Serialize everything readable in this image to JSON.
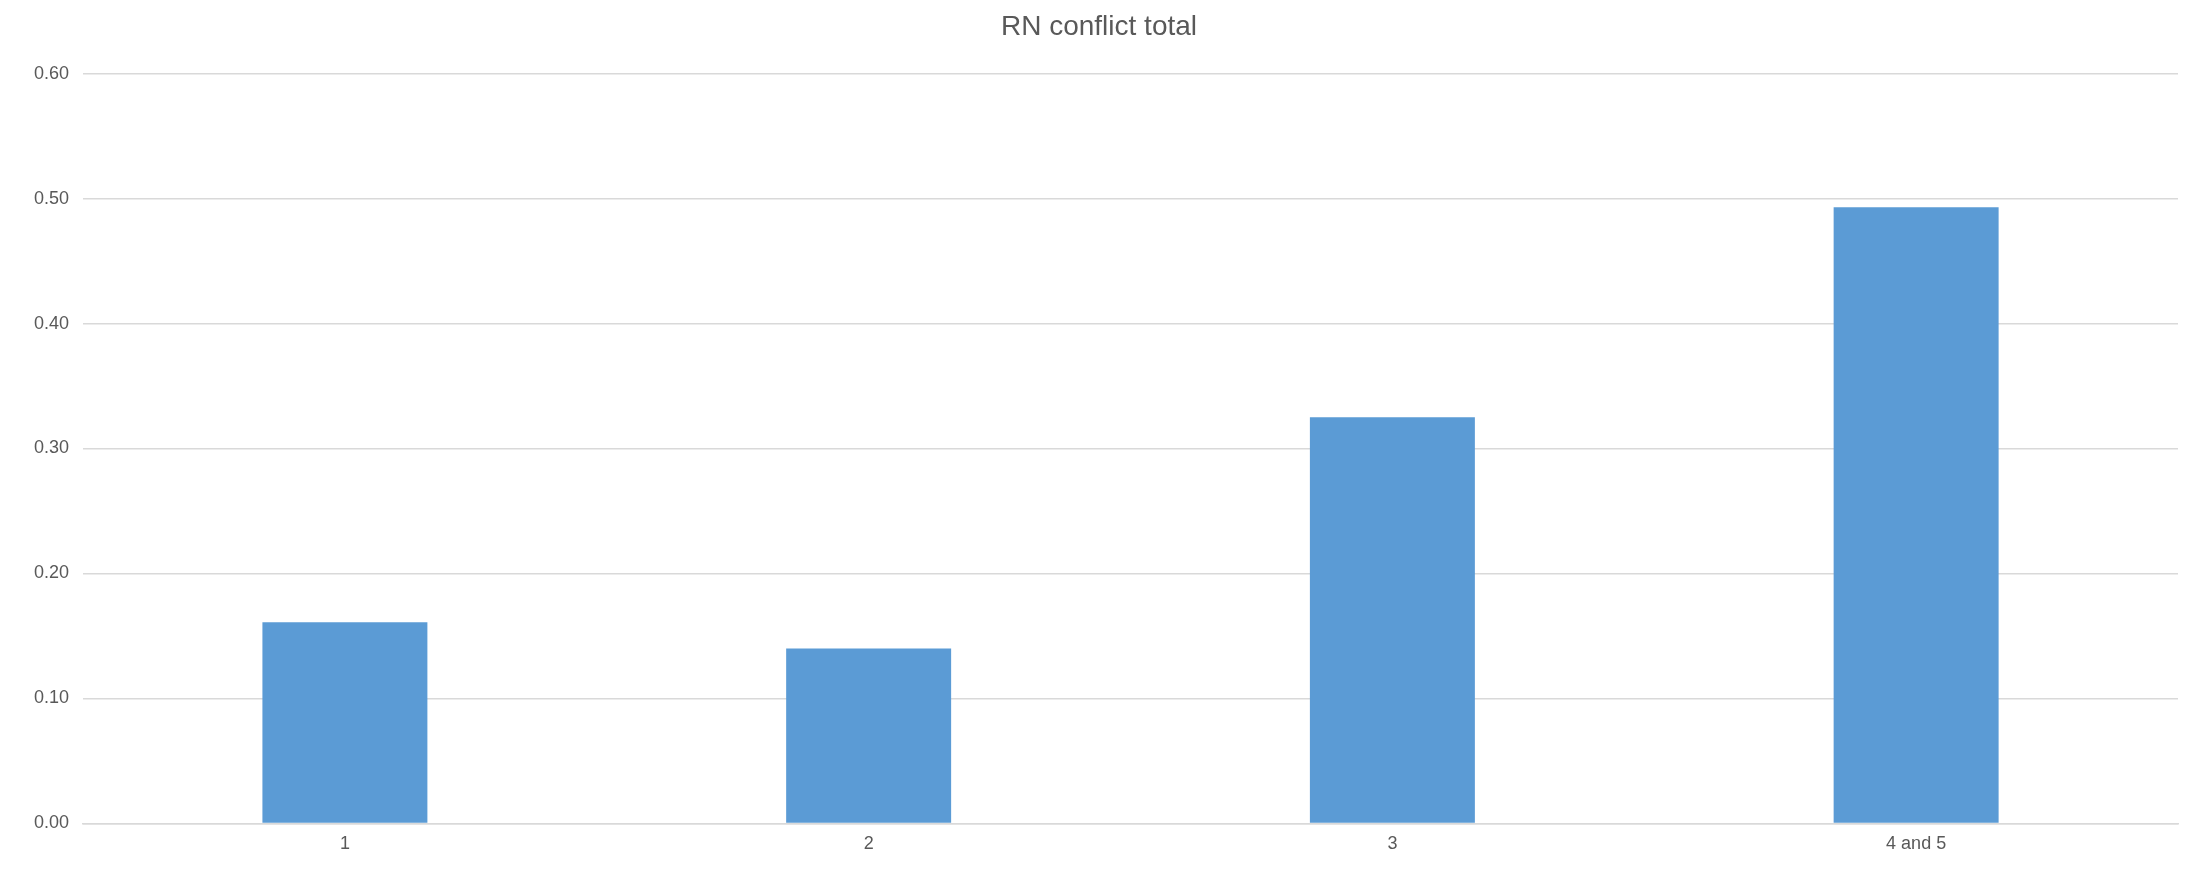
{
  "chart_data": {
    "type": "bar",
    "title": "RN conflict total",
    "categories": [
      "1",
      "2",
      "3",
      "4 and 5"
    ],
    "values": [
      0.161,
      0.14,
      0.325,
      0.493
    ],
    "color": "#5b9bd5",
    "ylim": [
      0,
      0.6
    ],
    "yticks": [
      {
        "value": 0,
        "label": "0.00"
      },
      {
        "value": 0.1,
        "label": "0.10"
      },
      {
        "value": 0.2,
        "label": "0.20"
      },
      {
        "value": 0.3,
        "label": "0.30"
      },
      {
        "value": 0.4,
        "label": "0.40"
      },
      {
        "value": 0.5,
        "label": "0.50"
      },
      {
        "value": 0.6,
        "label": "0.60"
      }
    ],
    "grid": "y",
    "legend": false
  }
}
